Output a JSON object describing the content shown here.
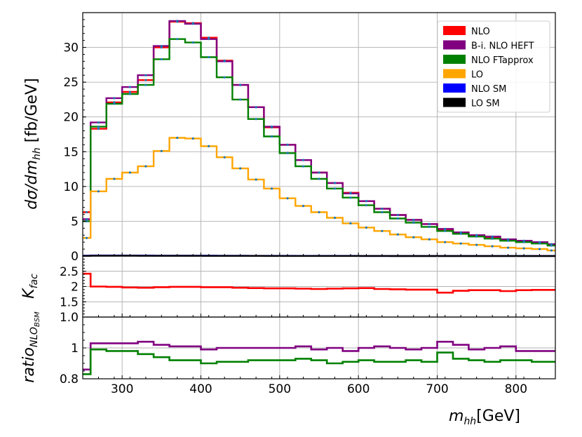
{
  "chart_data": {
    "type": "line",
    "xlabel": "m_hh [GeV]",
    "x_ticks": [
      300,
      400,
      500,
      600,
      700,
      800
    ],
    "xlim": [
      250,
      850
    ],
    "bin_edges": [
      250,
      260,
      280,
      300,
      320,
      340,
      360,
      380,
      400,
      420,
      440,
      460,
      480,
      500,
      520,
      540,
      560,
      580,
      600,
      620,
      640,
      660,
      680,
      700,
      720,
      740,
      760,
      780,
      800,
      820,
      840,
      850
    ],
    "panels": [
      {
        "id": "main",
        "ylabel": "dσ/dm_hh [fb/GeV]",
        "ylim": [
          0,
          35
        ],
        "y_ticks": [
          0,
          5,
          10,
          15,
          20,
          25,
          30
        ],
        "grid": true,
        "legend_position": "top-right",
        "series": [
          {
            "name": "NLO",
            "color": "#ff0000",
            "values": [
              6.3,
              18.3,
              22.1,
              23.6,
              25.3,
              30.0,
              33.7,
              33.5,
              31.4,
              28.1,
              24.6,
              21.4,
              18.5,
              16.0,
              13.8,
              12.0,
              10.5,
              9.1,
              7.9,
              6.8,
              5.9,
              5.2,
              4.6,
              3.8,
              3.4,
              3.0,
              2.7,
              2.4,
              2.1,
              1.9,
              1.6
            ]
          },
          {
            "name": "B-i. NLO HEFT",
            "color": "#800080",
            "values": [
              5.3,
              19.2,
              22.7,
              24.3,
              26.0,
              30.2,
              33.8,
              33.4,
              31.2,
              28.0,
              24.6,
              21.4,
              18.6,
              16.0,
              13.8,
              12.0,
              10.5,
              9.0,
              7.9,
              6.8,
              5.9,
              5.2,
              4.6,
              3.9,
              3.4,
              3.0,
              2.8,
              2.4,
              2.2,
              2.0,
              1.7
            ]
          },
          {
            "name": "NLO FTapprox",
            "color": "#008000",
            "values": [
              5.0,
              18.6,
              21.9,
              23.3,
              24.6,
              28.3,
              31.2,
              30.7,
              28.6,
              25.7,
              22.5,
              19.7,
              17.2,
              14.8,
              12.9,
              11.1,
              9.7,
              8.4,
              7.3,
              6.3,
              5.4,
              4.8,
              4.2,
              3.6,
              3.2,
              2.8,
              2.5,
              2.2,
              2.0,
              1.8,
              1.5
            ]
          },
          {
            "name": "LO",
            "color": "#ffa500",
            "values": [
              2.6,
              9.3,
              11.1,
              12.0,
              12.9,
              15.1,
              17.0,
              16.9,
              15.8,
              14.2,
              12.6,
              11.0,
              9.7,
              8.3,
              7.2,
              6.3,
              5.5,
              4.7,
              4.1,
              3.6,
              3.1,
              2.7,
              2.4,
              2.0,
              1.8,
              1.6,
              1.4,
              1.2,
              1.1,
              1.0,
              0.8
            ]
          },
          {
            "name": "NLO SM",
            "color": "#0000ff",
            "values": [
              0.05,
              0.08,
              0.08,
              0.07,
              0.07,
              0.06,
              0.06,
              0.05,
              0.05,
              0.04,
              0.04,
              0.03,
              0.03,
              0.03,
              0.02,
              0.02,
              0.02,
              0.02,
              0.01,
              0.01,
              0.01,
              0.01,
              0.01,
              0.01,
              0.01,
              0.01,
              0.01,
              0.01,
              0.01,
              0.01,
              0.01
            ]
          },
          {
            "name": "LO SM",
            "color": "#000000",
            "values": [
              0.02,
              0.04,
              0.04,
              0.04,
              0.03,
              0.03,
              0.03,
              0.03,
              0.02,
              0.02,
              0.02,
              0.02,
              0.01,
              0.01,
              0.01,
              0.01,
              0.01,
              0.01,
              0.01,
              0.01,
              0.0,
              0.0,
              0.0,
              0.0,
              0.0,
              0.0,
              0.0,
              0.0,
              0.0,
              0.0,
              0.0
            ]
          }
        ]
      },
      {
        "id": "kfactor",
        "ylabel": "K_fac",
        "ylim": [
          1.0,
          3.0
        ],
        "y_ticks": [
          1.5,
          2.0,
          2.5
        ],
        "grid": true,
        "series": [
          {
            "name": "NLO",
            "color": "#ff0000",
            "values": [
              2.42,
              2.0,
              1.99,
              1.97,
              1.96,
              1.98,
              1.99,
              1.99,
              1.98,
              1.98,
              1.96,
              1.95,
              1.94,
              1.94,
              1.93,
              1.92,
              1.93,
              1.94,
              1.95,
              1.92,
              1.91,
              1.9,
              1.9,
              1.8,
              1.86,
              1.88,
              1.88,
              1.85,
              1.88,
              1.89,
              1.89
            ]
          }
        ]
      },
      {
        "id": "ratio",
        "ylabel": "ratio_NLO_BSM",
        "ylim": [
          0.8,
          1.2
        ],
        "y_ticks": [
          0.8,
          1.0
        ],
        "grid": true,
        "series": [
          {
            "name": "B-i. NLO HEFT",
            "color": "#800080",
            "values": [
              0.86,
              1.03,
              1.03,
              1.03,
              1.04,
              1.02,
              1.01,
              1.01,
              0.99,
              1.0,
              1.0,
              1.0,
              1.0,
              1.0,
              1.01,
              0.99,
              1.0,
              0.98,
              1.0,
              1.01,
              1.0,
              0.99,
              1.0,
              1.04,
              1.02,
              0.99,
              1.0,
              1.01,
              0.98,
              0.98,
              0.98
            ]
          },
          {
            "name": "NLO FTapprox",
            "color": "#008000",
            "values": [
              0.83,
              0.99,
              0.98,
              0.98,
              0.96,
              0.94,
              0.92,
              0.92,
              0.9,
              0.91,
              0.91,
              0.92,
              0.92,
              0.92,
              0.93,
              0.92,
              0.9,
              0.91,
              0.92,
              0.91,
              0.91,
              0.92,
              0.91,
              0.97,
              0.93,
              0.92,
              0.91,
              0.92,
              0.92,
              0.91,
              0.91
            ]
          }
        ]
      }
    ]
  }
}
